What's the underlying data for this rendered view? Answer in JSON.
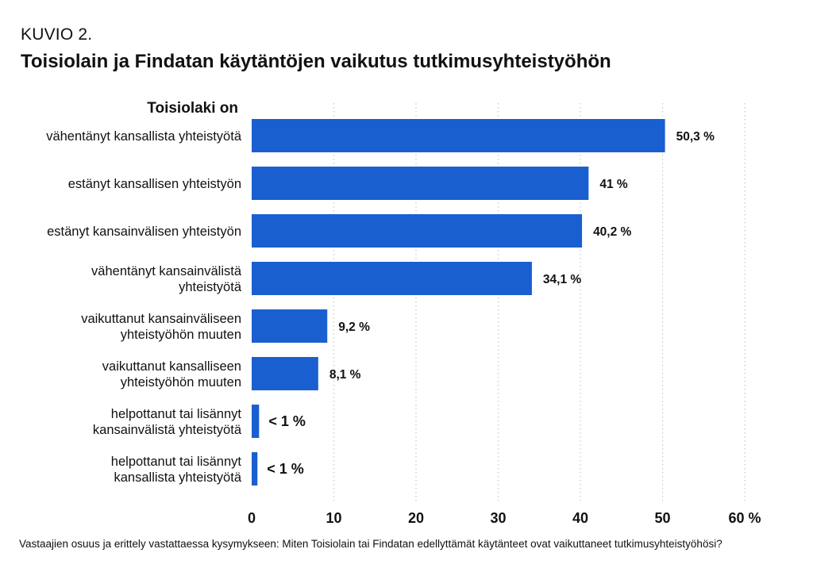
{
  "figure_label": "KUVIO 2.",
  "chart_data": {
    "type": "bar",
    "orientation": "horizontal",
    "title": "Toisiolain ja Findatan käytäntöjen vaikutus tutkimusyhteistyöhön",
    "category_header": "Toisiolaki on",
    "categories": [
      [
        "vähentänyt kansallista yhteistyötä"
      ],
      [
        "estänyt kansallisen yhteistyön"
      ],
      [
        "estänyt kansainvälisen yhteistyön"
      ],
      [
        "vähentänyt kansainvälistä",
        "yhteistyötä"
      ],
      [
        "vaikuttanut kansainväliseen",
        "yhteistyöhön muuten"
      ],
      [
        "vaikuttanut kansalliseen",
        "yhteistyöhön muuten"
      ],
      [
        "helpottanut tai lisännyt",
        "kansainvälistä yhteistyötä"
      ],
      [
        "helpottanut tai lisännyt",
        "kansallista yhteistyötä"
      ]
    ],
    "values": [
      50.3,
      41,
      40.2,
      34.1,
      9.2,
      8.1,
      0.9,
      0.7
    ],
    "value_labels": [
      "50,3 %",
      "41 %",
      "40,2 %",
      "34,1 %",
      "9,2 %",
      "8,1 %",
      "< 1 %",
      "< 1 %"
    ],
    "x_ticks": [
      "0",
      "10",
      "20",
      "30",
      "40",
      "50",
      "60 %"
    ],
    "xlim": [
      0,
      60
    ],
    "grid": "vertical dotted",
    "bar_color": "#1a5fcf",
    "footnote": "Vastaajien osuus ja erittely vastattaessa kysymykseen: Miten Toisiolain tai Findatan edellyttämät käytänteet ovat vaikuttaneet tutkimusyhteistyöhösi?"
  }
}
